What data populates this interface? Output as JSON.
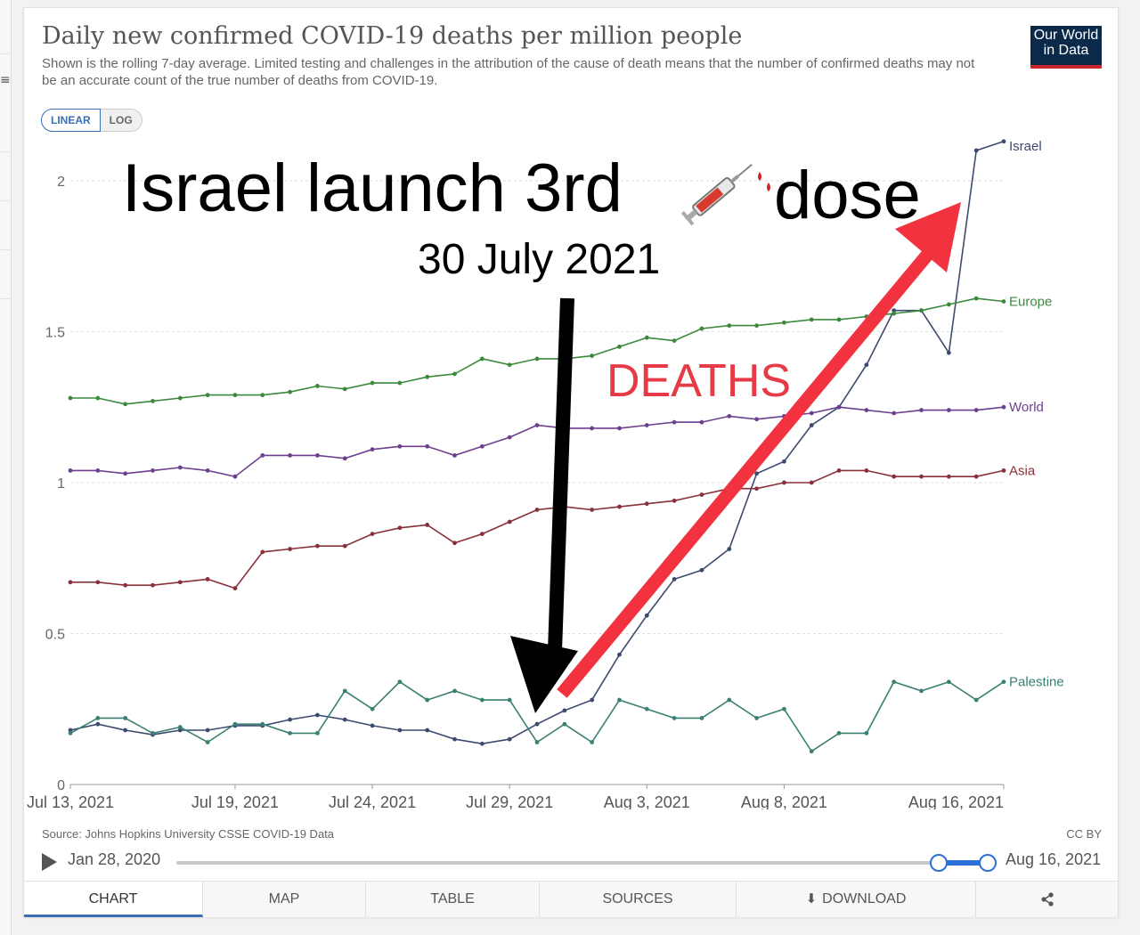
{
  "header": {
    "title": "Daily new confirmed COVID-19 deaths per million people",
    "subtitle": "Shown is the rolling 7-day average. Limited testing and challenges in the attribution of the cause of death means that the number of confirmed deaths may not be an accurate count of the true number of deaths from COVID-19.",
    "logo_line1": "Our World",
    "logo_line2": "in Data"
  },
  "scale": {
    "linear_label": "LINEAR",
    "log_label": "LOG",
    "selected": "LINEAR"
  },
  "overlay": {
    "headline_before": "Israel launch 3rd",
    "headline_icon": "syringe-icon",
    "headline_after": "dose",
    "date": "30 July 2021",
    "deaths_label": "DEATHS",
    "deaths_color": "#e63a46",
    "arrow_down_color": "#000000",
    "arrow_up_color": "#f2333f"
  },
  "chart_data": {
    "type": "line",
    "x": [
      "2021-07-13",
      "2021-07-14",
      "2021-07-15",
      "2021-07-16",
      "2021-07-17",
      "2021-07-18",
      "2021-07-19",
      "2021-07-20",
      "2021-07-21",
      "2021-07-22",
      "2021-07-23",
      "2021-07-24",
      "2021-07-25",
      "2021-07-26",
      "2021-07-27",
      "2021-07-28",
      "2021-07-29",
      "2021-07-30",
      "2021-07-31",
      "2021-08-01",
      "2021-08-02",
      "2021-08-03",
      "2021-08-04",
      "2021-08-05",
      "2021-08-06",
      "2021-08-07",
      "2021-08-08",
      "2021-08-09",
      "2021-08-10",
      "2021-08-11",
      "2021-08-12",
      "2021-08-13",
      "2021-08-14",
      "2021-08-15",
      "2021-08-16"
    ],
    "x_ticks": [
      "Jul 13, 2021",
      "Jul 19, 2021",
      "Jul 24, 2021",
      "Jul 29, 2021",
      "Aug 3, 2021",
      "Aug 8, 2021",
      "Aug 16, 2021"
    ],
    "x_tick_dates": [
      "2021-07-13",
      "2021-07-19",
      "2021-07-24",
      "2021-07-29",
      "2021-08-03",
      "2021-08-08",
      "2021-08-16"
    ],
    "y_ticks": [
      0,
      0.5,
      1,
      1.5,
      2
    ],
    "ylim": [
      0,
      2.1
    ],
    "grid": true,
    "series": [
      {
        "name": "Israel",
        "color": "#3c4a6e",
        "values": [
          0.18,
          0.2,
          0.18,
          0.165,
          0.18,
          0.18,
          0.195,
          0.195,
          0.215,
          0.23,
          0.215,
          0.195,
          0.18,
          0.18,
          0.15,
          0.135,
          0.15,
          0.2,
          0.245,
          0.28,
          0.43,
          0.56,
          0.68,
          0.71,
          0.78,
          1.03,
          1.07,
          1.19,
          1.25,
          1.39,
          1.57,
          1.57,
          1.43,
          2.1,
          2.13
        ]
      },
      {
        "name": "Europe",
        "color": "#3b8a3c",
        "values": [
          1.28,
          1.28,
          1.26,
          1.27,
          1.28,
          1.29,
          1.29,
          1.29,
          1.3,
          1.32,
          1.31,
          1.33,
          1.33,
          1.35,
          1.36,
          1.41,
          1.39,
          1.41,
          1.41,
          1.42,
          1.45,
          1.48,
          1.47,
          1.51,
          1.52,
          1.52,
          1.53,
          1.54,
          1.54,
          1.55,
          1.56,
          1.57,
          1.59,
          1.61,
          1.6
        ]
      },
      {
        "name": "World",
        "color": "#6d3f8f",
        "values": [
          1.04,
          1.04,
          1.03,
          1.04,
          1.05,
          1.04,
          1.02,
          1.09,
          1.09,
          1.09,
          1.08,
          1.11,
          1.12,
          1.12,
          1.09,
          1.12,
          1.15,
          1.19,
          1.18,
          1.18,
          1.18,
          1.19,
          1.2,
          1.2,
          1.22,
          1.21,
          1.22,
          1.23,
          1.25,
          1.24,
          1.23,
          1.24,
          1.24,
          1.24,
          1.25
        ]
      },
      {
        "name": "Asia",
        "color": "#883039",
        "values": [
          0.67,
          0.67,
          0.66,
          0.66,
          0.67,
          0.68,
          0.65,
          0.77,
          0.78,
          0.79,
          0.79,
          0.83,
          0.85,
          0.86,
          0.8,
          0.83,
          0.87,
          0.91,
          0.92,
          0.91,
          0.92,
          0.93,
          0.94,
          0.96,
          0.98,
          0.98,
          1.0,
          1.0,
          1.04,
          1.04,
          1.02,
          1.02,
          1.02,
          1.02,
          1.04
        ]
      },
      {
        "name": "Palestine",
        "color": "#3a8073",
        "values": [
          0.17,
          0.22,
          0.22,
          0.17,
          0.19,
          0.14,
          0.2,
          0.2,
          0.17,
          0.17,
          0.31,
          0.25,
          0.34,
          0.28,
          0.31,
          0.28,
          0.28,
          0.14,
          0.2,
          0.14,
          0.28,
          0.25,
          0.22,
          0.22,
          0.28,
          0.22,
          0.25,
          0.11,
          0.17,
          0.17,
          0.34,
          0.31,
          0.34,
          0.28,
          0.34
        ]
      }
    ]
  },
  "footer": {
    "source": "Source: Johns Hopkins University CSSE COVID-19 Data",
    "license": "CC BY",
    "timeline_start": "Jan 28, 2020",
    "timeline_end": "Aug 16, 2021"
  },
  "tabs": [
    {
      "label": "CHART"
    },
    {
      "label": "MAP"
    },
    {
      "label": "TABLE"
    },
    {
      "label": "SOURCES"
    },
    {
      "label": "DOWNLOAD"
    }
  ]
}
